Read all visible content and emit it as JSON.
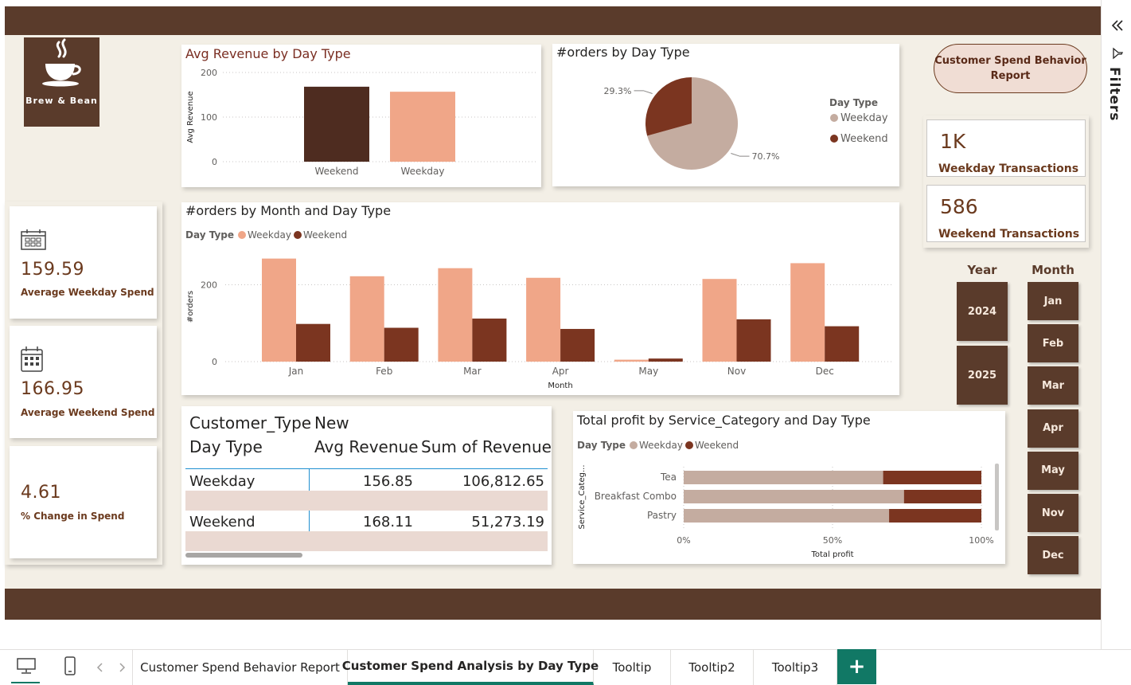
{
  "report": {
    "logo_text": "Brew & Bean",
    "title_pill": "Customer Spend Behavior Report",
    "filters_label": "Filters"
  },
  "kpis": [
    {
      "value": "159.59",
      "label": "Average Weekday Spend",
      "icon": "calendar-icon"
    },
    {
      "value": "166.95",
      "label": "Average Weekend Spend",
      "icon": "calendar-icon"
    },
    {
      "value": "4.61",
      "label": "% Change in Spend"
    }
  ],
  "transactions": [
    {
      "value": "1K",
      "label": "Weekday Transactions"
    },
    {
      "value": "586",
      "label": "Weekend Transactions"
    }
  ],
  "slicers": {
    "year": {
      "header": "Year",
      "items": [
        "2024",
        "2025"
      ]
    },
    "month": {
      "header": "Month",
      "items": [
        "Jan",
        "Feb",
        "Mar",
        "Apr",
        "May",
        "Nov",
        "Dec"
      ]
    }
  },
  "colors": {
    "weekday": "#f0a688",
    "weekend": "#7b3520",
    "weekend_dark": "#4e2c20",
    "brown": "#5a3b2b",
    "pie_weekday": "#c4aca0",
    "accent_green": "#117865"
  },
  "chart_data": [
    {
      "id": "avg-revenue",
      "type": "bar",
      "title": "Avg Revenue by Day Type",
      "ylabel": "Avg Revenue",
      "categories": [
        "Weekend",
        "Weekday"
      ],
      "values": [
        168.11,
        156.85
      ],
      "yticks": [
        "0",
        "100",
        "200"
      ],
      "ylim": [
        0,
        200
      ]
    },
    {
      "id": "orders-pie",
      "type": "pie",
      "title": "#orders by Day Type",
      "legend_title": "Day Type",
      "slices": [
        {
          "name": "Weekday",
          "value": 70.7,
          "label": "70.7%"
        },
        {
          "name": "Weekend",
          "value": 29.3,
          "label": "29.3%"
        }
      ],
      "legend": "right"
    },
    {
      "id": "orders-month",
      "type": "bar",
      "title": "#orders by Month and Day Type",
      "legend_title": "Day Type",
      "xlabel": "Month",
      "ylabel": "#orders",
      "categories": [
        "Jan",
        "Feb",
        "Mar",
        "Apr",
        "May",
        "Nov",
        "Dec"
      ],
      "series": [
        {
          "name": "Weekday",
          "values": [
            268,
            222,
            243,
            218,
            5,
            215,
            256
          ]
        },
        {
          "name": "Weekend",
          "values": [
            98,
            88,
            112,
            85,
            8,
            110,
            92
          ]
        }
      ],
      "yticks": [
        "0",
        "200"
      ],
      "ylim": [
        0,
        290
      ],
      "legend": "top-left"
    },
    {
      "id": "profit-category",
      "type": "bar",
      "title": "Total profit by Service_Category and Day Type",
      "legend_title": "Day Type",
      "ylabel": "Service_Categ...",
      "xlabel": "Total profit",
      "categories": [
        "Tea",
        "Breakfast Combo",
        "Pastry"
      ],
      "series": [
        {
          "name": "Weekday",
          "values": [
            0.67,
            0.74,
            0.69
          ]
        },
        {
          "name": "Weekend",
          "values": [
            0.33,
            0.26,
            0.31
          ]
        }
      ],
      "xticks": [
        "0%",
        "50%",
        "100%"
      ],
      "stacked": "100%",
      "legend": "top-left"
    }
  ],
  "table": {
    "header1": "Customer_Type",
    "header1_value": "New",
    "col_day_type": "Day Type",
    "col_avg": "Avg Revenue",
    "col_sum": "Sum of Revenue",
    "rows": [
      {
        "day_type": "Weekday",
        "avg": "156.85",
        "sum": "106,812.65"
      },
      {
        "day_type": "Weekend",
        "avg": "168.11",
        "sum": "51,273.19"
      }
    ]
  },
  "tabs": [
    {
      "label": "Customer Spend Behavior Report",
      "active": false
    },
    {
      "label": "Customer Spend Analysis by Day Type",
      "active": true
    },
    {
      "label": "Tooltip",
      "active": false
    },
    {
      "label": "Tooltip2",
      "active": false
    },
    {
      "label": "Tooltip3",
      "active": false
    }
  ],
  "add_tab_label": "+"
}
